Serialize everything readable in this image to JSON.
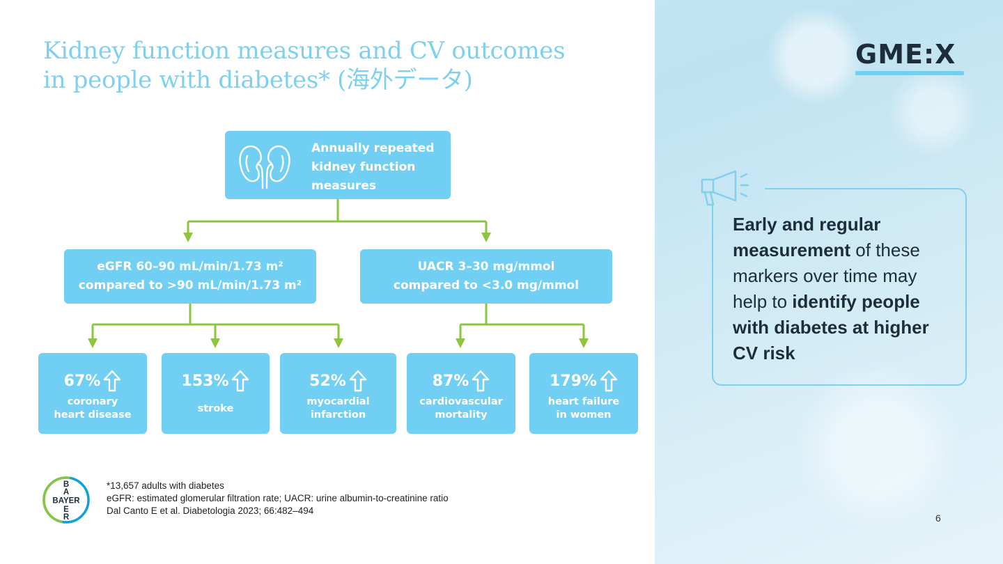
{
  "slide": {
    "title_line1": "Kidney function measures and CV outcomes",
    "title_line2": "in people with diabetes* (海外データ)",
    "logo_text": "GME:X",
    "page_number": "6"
  },
  "diagram": {
    "root": {
      "line1": "Annually repeated",
      "line2": "kidney function",
      "line3": "measures"
    },
    "branches": [
      {
        "line1": "eGFR 60–90 mL/min/1.73 m²",
        "line2": "compared to >90 mL/min/1.73 m²"
      },
      {
        "line1": "UACR 3–30 mg/mmol",
        "line2": "compared to <3.0 mg/mmol"
      }
    ],
    "outcomes": [
      {
        "value": "67%",
        "line1": "coronary",
        "line2": "heart disease"
      },
      {
        "value": "153%",
        "line1": "stroke",
        "line2": ""
      },
      {
        "value": "52%",
        "line1": "myocardial",
        "line2": "infarction"
      },
      {
        "value": "87%",
        "line1": "cardiovascular",
        "line2": "mortality"
      },
      {
        "value": "179%",
        "line1": "heart failure",
        "line2": "in women"
      }
    ],
    "colors": {
      "box": "#72cff4",
      "connector": "#8cc63f",
      "title": "#7fd0ee"
    },
    "icons": {
      "root": "kidneys-icon",
      "outcome": "arrow-up-icon"
    }
  },
  "callout": {
    "icon": "megaphone-icon",
    "bold1": "Early and regular measurement",
    "text1": " of these markers over time may help to ",
    "bold2": "identify people with diabetes at higher CV risk"
  },
  "footer": {
    "logo_letters": {
      "vertical": [
        "B",
        "A",
        "Y",
        "E",
        "R"
      ],
      "horizontal": "BAYER"
    },
    "note1": "*13,657 adults with diabetes",
    "note2": "eGFR: estimated glomerular filtration rate; UACR: urine albumin-to-creatinine ratio",
    "note3": "Dal Canto E et al. Diabetologia 2023; 66:482–494"
  }
}
